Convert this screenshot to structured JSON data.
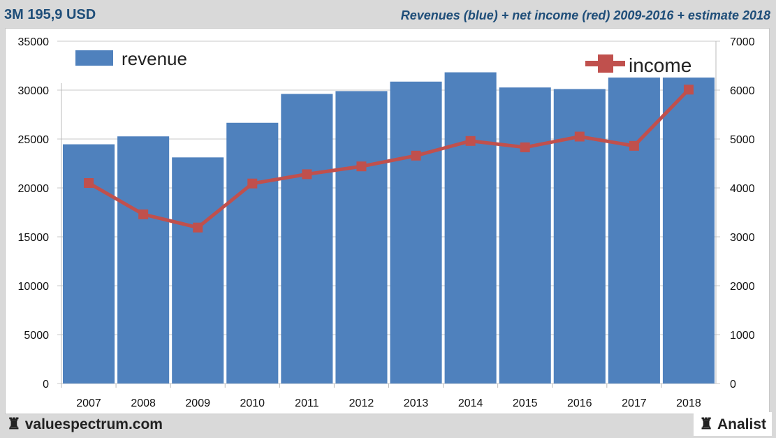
{
  "header": {
    "title_left": "3M 195,9 USD",
    "title_right": "Revenues (blue) + net income (red) 2009-2016 + estimate 2018"
  },
  "footer": {
    "left_brand": "valuespectrum.com",
    "right_brand": "Analist",
    "brand_icon": "rook-chess-icon"
  },
  "chart_data": {
    "type": "bar+line",
    "categories": [
      "2007",
      "2008",
      "2009",
      "2010",
      "2011",
      "2012",
      "2013",
      "2014",
      "2015",
      "2016",
      "2017",
      "2018"
    ],
    "series": [
      {
        "name": "revenue",
        "type": "bar",
        "axis": "left",
        "color": "#4f81bd",
        "values": [
          24460,
          25270,
          23120,
          26660,
          29610,
          29900,
          30870,
          31820,
          30270,
          30110,
          31660,
          32760
        ]
      },
      {
        "name": "income",
        "type": "line",
        "axis": "right",
        "color": "#c0504d",
        "values": [
          4100,
          3460,
          3190,
          4090,
          4280,
          4440,
          4660,
          4960,
          4830,
          5050,
          4860,
          6010
        ]
      }
    ],
    "left_axis": {
      "ylim": [
        0,
        35000
      ],
      "ticks": [
        "0",
        "5000",
        "10000",
        "15000",
        "20000",
        "25000",
        "30000",
        "35000"
      ]
    },
    "right_axis": {
      "ylim": [
        0,
        7000
      ],
      "ticks": [
        "0",
        "1000",
        "2000",
        "3000",
        "4000",
        "5000",
        "6000",
        "7000"
      ]
    },
    "grid": true,
    "legend": [
      {
        "label": "revenue",
        "placement": "top-left"
      },
      {
        "label": "income",
        "placement": "top-right"
      }
    ]
  }
}
